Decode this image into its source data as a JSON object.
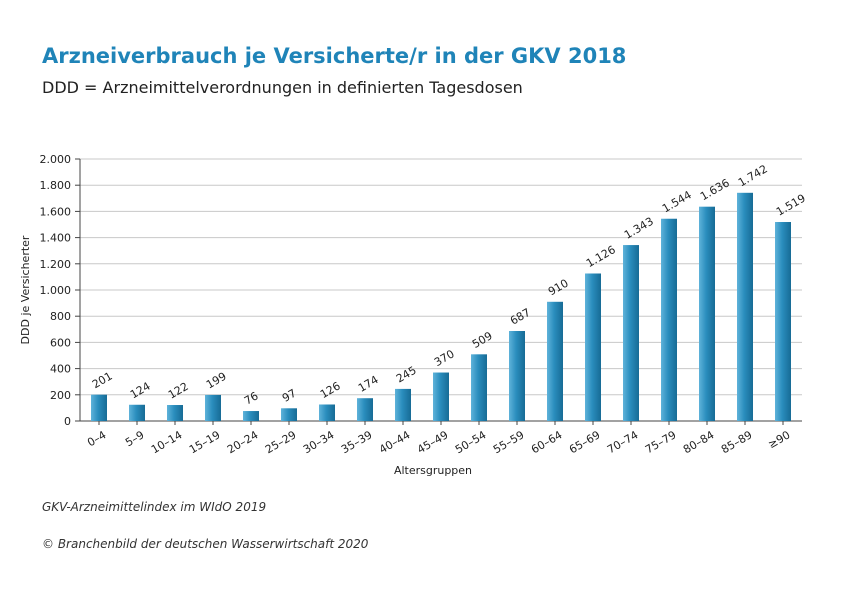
{
  "header": {
    "title": "Arzneiverbrauch je Versicherte/r in der GKV 2018",
    "subtitle": "DDD = Arzneimittelverordnungen in definierten Tagesdosen"
  },
  "footer": {
    "source": "GKV-Arzneimittelindex im WIdO 2019",
    "copyright": "© Branchenbild der deutschen Wasserwirtschaft 2020"
  },
  "chart_data": {
    "type": "bar",
    "xlabel": "Altersgruppen",
    "ylabel": "DDD je Versicherter",
    "ylim": [
      0,
      2000
    ],
    "yticks": [
      0,
      200,
      400,
      600,
      800,
      1000,
      1200,
      1400,
      1600,
      1800,
      2000
    ],
    "ytick_labels": [
      "0",
      "200",
      "400",
      "600",
      "800",
      "1.000",
      "1.200",
      "1.400",
      "1.600",
      "1.800",
      "2.000"
    ],
    "grid": true,
    "bar_color": "#2a8dbd",
    "categories": [
      "0–4",
      "5–9",
      "10–14",
      "15–19",
      "20–24",
      "25–29",
      "30–34",
      "35–39",
      "40–44",
      "45–49",
      "50–54",
      "55–59",
      "60–64",
      "65–69",
      "70–74",
      "75–79",
      "80–84",
      "85–89",
      "≥90"
    ],
    "values": [
      201,
      124,
      122,
      199,
      76,
      97,
      126,
      174,
      245,
      370,
      509,
      687,
      910,
      1126,
      1343,
      1544,
      1636,
      1742,
      1519
    ],
    "value_labels": [
      "201",
      "124",
      "122",
      "199",
      "76",
      "97",
      "126",
      "174",
      "245",
      "370",
      "509",
      "687",
      "910",
      "1.126",
      "1.343",
      "1.544",
      "1.636",
      "1.742",
      "1.519"
    ]
  }
}
